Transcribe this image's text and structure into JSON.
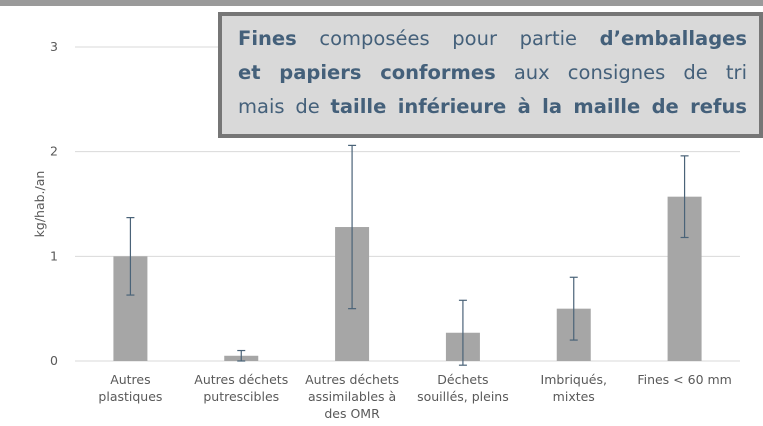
{
  "chart_data": {
    "type": "bar",
    "y_label": "kg/hab./an",
    "categories": [
      [
        "Autres",
        "plastiques"
      ],
      [
        "Autres déchets",
        "putrescibles"
      ],
      [
        "Autres déchets",
        "assimilables à",
        "des OMR"
      ],
      [
        "Déchets",
        "souillés, pleins"
      ],
      [
        "Imbriqués,",
        "mixtes"
      ],
      [
        "Fines < 60 mm"
      ]
    ],
    "values": [
      1.0,
      0.05,
      1.28,
      0.27,
      0.5,
      1.57
    ],
    "errors": [
      0.37,
      0.05,
      0.78,
      0.31,
      0.3,
      0.39
    ],
    "color": "#a6a6a6",
    "error_color": "#4a6378",
    "ylim": [
      0,
      3
    ],
    "yticks": [
      0,
      1,
      2,
      3
    ],
    "grid": true,
    "annotation": [
      [
        {
          "text": "Fines",
          "bold": true
        },
        {
          "text": " composées pour partie ",
          "bold": false
        },
        {
          "text": "d’emballages",
          "bold": true
        }
      ],
      [
        {
          "text": "et papiers conformes",
          "bold": true
        },
        {
          "text": " aux consignes de tri",
          "bold": false
        }
      ],
      [
        {
          "text": "mais de ",
          "bold": false
        },
        {
          "text": "taille inférieure à la maille de refus",
          "bold": true
        }
      ]
    ]
  }
}
